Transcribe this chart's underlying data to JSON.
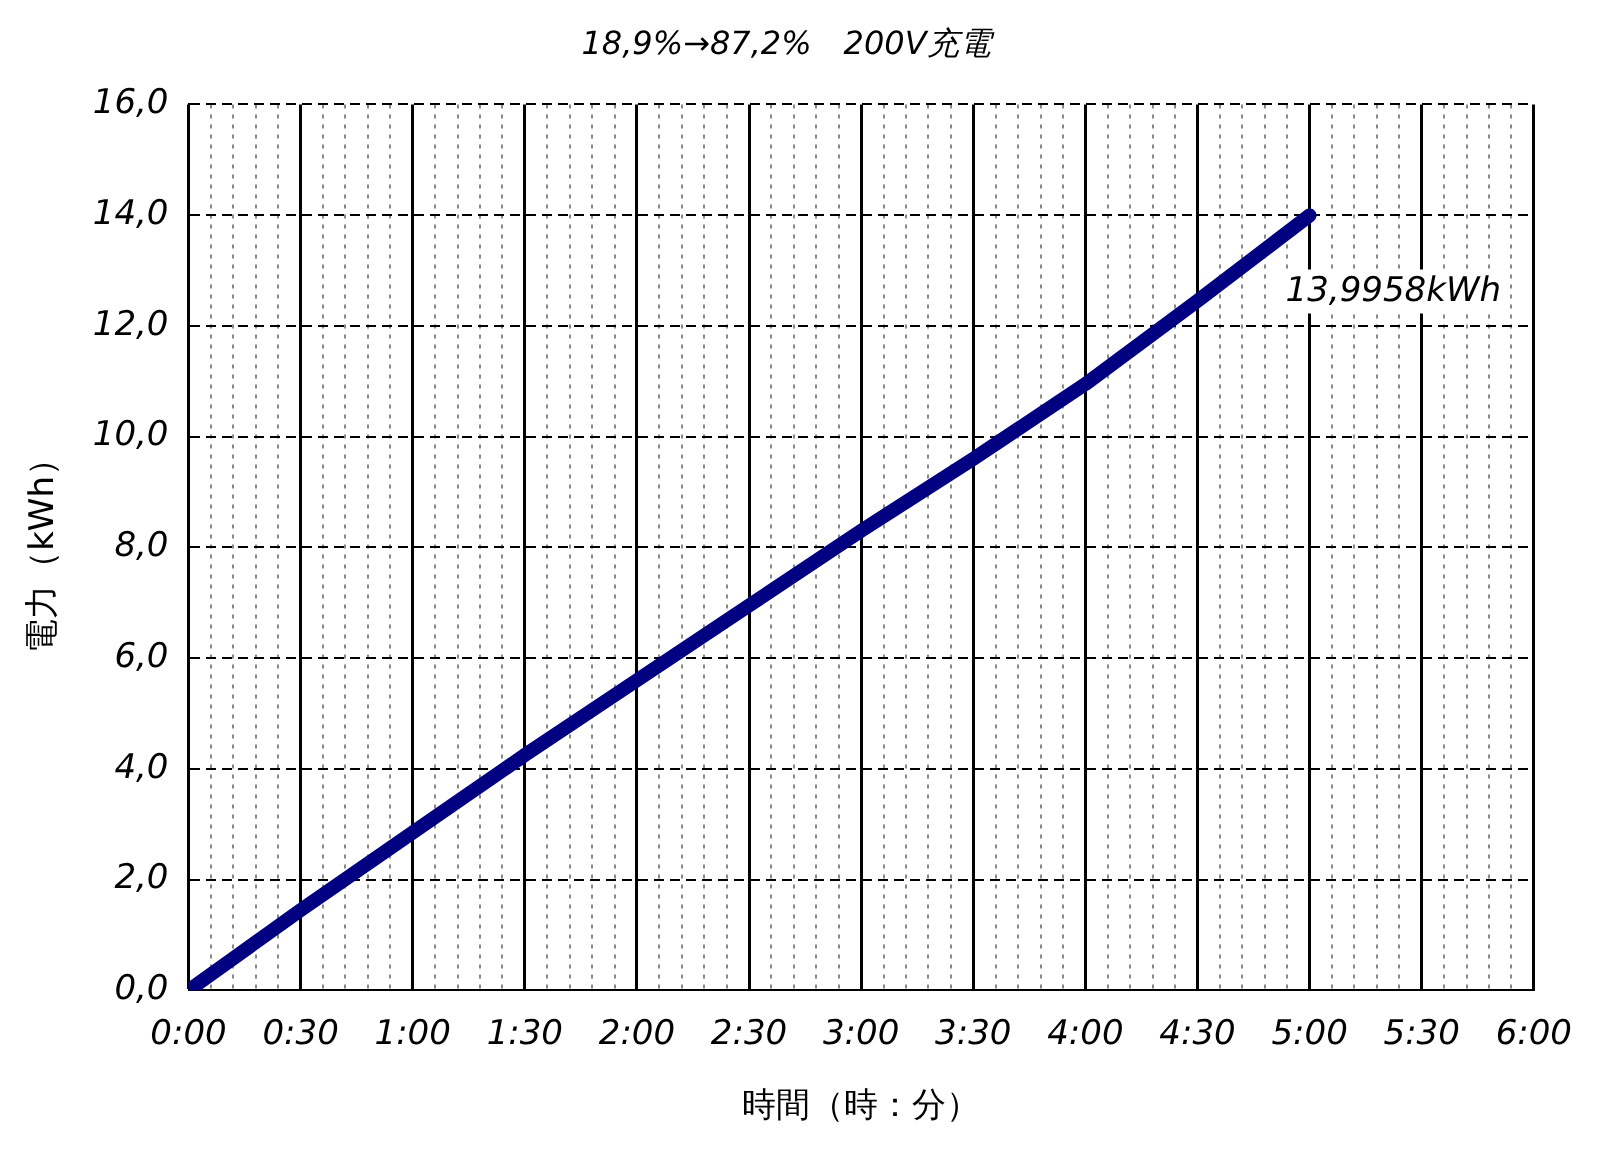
{
  "chart_data": {
    "type": "line",
    "title": "18,9%→87,2%　200V充電",
    "xlabel": "時間（時：分）",
    "ylabel": "電力（kWh）",
    "x": [
      0,
      0.5,
      1,
      1.5,
      2,
      2.5,
      3,
      3.5,
      4,
      4.5,
      5.0
    ],
    "series": [
      {
        "color": "#000080",
        "values": [
          0,
          1.45,
          2.85,
          4.25,
          5.6,
          6.95,
          8.3,
          9.6,
          10.95,
          12.45,
          13.9958
        ]
      }
    ],
    "xlim": [
      0,
      6
    ],
    "xticks": [
      {
        "value": 0,
        "label": "0:00"
      },
      {
        "value": 0.1,
        "label": null
      },
      {
        "value": 0.2,
        "label": null
      },
      {
        "value": 0.3,
        "label": null
      },
      {
        "value": 0.4,
        "label": null
      },
      {
        "value": 0.5,
        "label": "0:30"
      },
      {
        "value": 0.6,
        "label": null
      },
      {
        "value": 0.7,
        "label": null
      },
      {
        "value": 0.8,
        "label": null
      },
      {
        "value": 0.9,
        "label": null
      },
      {
        "value": 1,
        "label": "1:00"
      },
      {
        "value": 1.1,
        "label": null
      },
      {
        "value": 1.2,
        "label": null
      },
      {
        "value": 1.3,
        "label": null
      },
      {
        "value": 1.4,
        "label": null
      },
      {
        "value": 1.5,
        "label": "1:30"
      },
      {
        "value": 1.6,
        "label": null
      },
      {
        "value": 1.7,
        "label": null
      },
      {
        "value": 1.8,
        "label": null
      },
      {
        "value": 1.9,
        "label": null
      },
      {
        "value": 2,
        "label": "2:00"
      },
      {
        "value": 2.1,
        "label": null
      },
      {
        "value": 2.2,
        "label": null
      },
      {
        "value": 2.3,
        "label": null
      },
      {
        "value": 2.4,
        "label": null
      },
      {
        "value": 2.5,
        "label": "2:30"
      },
      {
        "value": 2.6,
        "label": null
      },
      {
        "value": 2.7,
        "label": null
      },
      {
        "value": 2.8,
        "label": null
      },
      {
        "value": 2.9,
        "label": null
      },
      {
        "value": 3,
        "label": "3:00"
      },
      {
        "value": 3.1,
        "label": null
      },
      {
        "value": 3.2,
        "label": null
      },
      {
        "value": 3.3,
        "label": null
      },
      {
        "value": 3.4,
        "label": null
      },
      {
        "value": 3.5,
        "label": "3:30"
      },
      {
        "value": 3.6,
        "label": null
      },
      {
        "value": 3.7,
        "label": null
      },
      {
        "value": 3.8,
        "label": null
      },
      {
        "value": 3.9,
        "label": null
      },
      {
        "value": 4,
        "label": "4:00"
      },
      {
        "value": 4.1,
        "label": null
      },
      {
        "value": 4.2,
        "label": null
      },
      {
        "value": 4.3,
        "label": null
      },
      {
        "value": 4.4,
        "label": null
      },
      {
        "value": 4.5,
        "label": "4:30"
      },
      {
        "value": 4.6,
        "label": null
      },
      {
        "value": 4.7,
        "label": null
      },
      {
        "value": 4.8,
        "label": null
      },
      {
        "value": 4.9,
        "label": null
      },
      {
        "value": 5,
        "label": "5:00"
      },
      {
        "value": 5.1,
        "label": null
      },
      {
        "value": 5.2,
        "label": null
      },
      {
        "value": 5.3,
        "label": null
      },
      {
        "value": 5.4,
        "label": null
      },
      {
        "value": 5.5,
        "label": "5:30"
      },
      {
        "value": 5.6,
        "label": null
      },
      {
        "value": 5.7,
        "label": null
      },
      {
        "value": 5.8,
        "label": null
      },
      {
        "value": 5.9,
        "label": null
      },
      {
        "value": 6,
        "label": "6:00"
      }
    ],
    "ylim": [
      0,
      16
    ],
    "yticks": [
      {
        "value": 0,
        "label": "0,0"
      },
      {
        "value": 2,
        "label": "2,0"
      },
      {
        "value": 4,
        "label": "4,0"
      },
      {
        "value": 6,
        "label": "6,0"
      },
      {
        "value": 8,
        "label": "8,0"
      },
      {
        "value": 10,
        "label": "10,0"
      },
      {
        "value": 12,
        "label": "12,0"
      },
      {
        "value": 14,
        "label": "14,0"
      },
      {
        "value": 16,
        "label": "16,0"
      }
    ],
    "grid": true,
    "legend": false,
    "marker": "none",
    "line_style": "solid",
    "annotations": [
      {
        "text": "13,9958kWh",
        "x": 5.0,
        "y": 13.9958
      }
    ]
  }
}
